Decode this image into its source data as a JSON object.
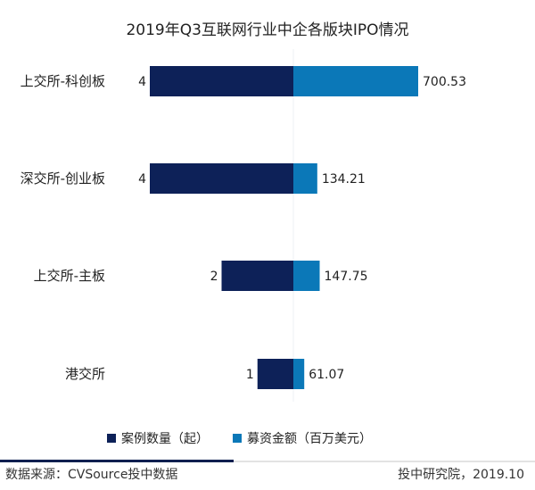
{
  "chart_data": {
    "type": "bar",
    "orientation": "horizontal-diverging",
    "title": "2019年Q3互联网行业中企各版块IPO情况",
    "categories": [
      "上交所-科创板",
      "深交所-创业板",
      "上交所-主板",
      "港交所"
    ],
    "series": [
      {
        "name": "案例数量（起）",
        "values": [
          4,
          4,
          2,
          1
        ],
        "labels": [
          "4",
          "4",
          "2",
          "1"
        ],
        "color": "#0d2158",
        "side": "left"
      },
      {
        "name": "募资金额（百万美元）",
        "values": [
          700.53,
          134.21,
          147.75,
          61.07
        ],
        "labels": [
          "700.53",
          "134.21",
          "147.75",
          "61.07"
        ],
        "color": "#0b78b8",
        "side": "right"
      }
    ],
    "legend_position": "bottom",
    "grid": false
  },
  "footer": {
    "source": "数据来源：CVSource投中数据",
    "credit": "投中研究院，2019.10"
  }
}
